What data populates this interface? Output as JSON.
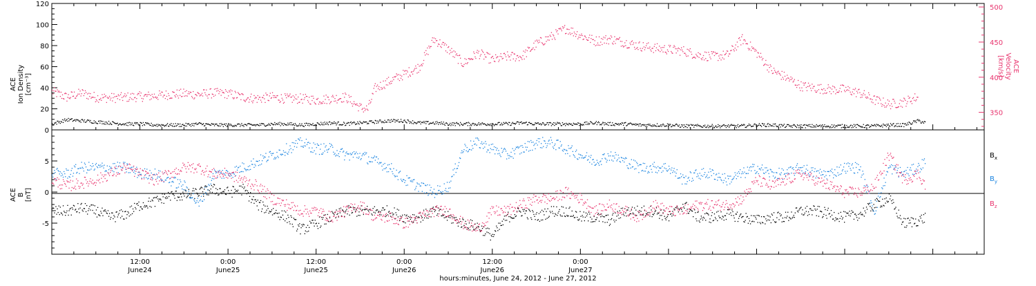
{
  "chart_data": [
    {
      "type": "scatter",
      "panel": "top",
      "ylabel_left": [
        "ACE",
        "Ion Density",
        "[cm⁻³]"
      ],
      "ylabel_right": [
        "ACE",
        "Velocity",
        "[km/s]"
      ],
      "ylim_left": [
        0,
        120
      ],
      "yticks_left": [
        0,
        20,
        40,
        60,
        80,
        100,
        120
      ],
      "ylim_right": [
        325,
        505
      ],
      "yticks_right": [
        350,
        400,
        450,
        500
      ],
      "right_axis_color": "#e8336d",
      "series": [
        {
          "axis": "left",
          "color": "#000000",
          "jitter": 1.6,
          "x": [
            0,
            2,
            4,
            6,
            8,
            10,
            12,
            14,
            16,
            18,
            20,
            22,
            24,
            26,
            28,
            30,
            32,
            34,
            36,
            38,
            40,
            42,
            44,
            46,
            48,
            50,
            52,
            54,
            56,
            58,
            60,
            62,
            64,
            66,
            68,
            70,
            72,
            74,
            76,
            78,
            80,
            82,
            84,
            86,
            88,
            90,
            92,
            94,
            96,
            98,
            100,
            102,
            104,
            106,
            108,
            110,
            112,
            114,
            116,
            118,
            119
          ],
          "y": [
            6,
            10,
            9,
            8,
            7,
            6,
            6,
            5,
            5,
            5,
            6,
            5,
            5,
            5,
            5,
            6,
            6,
            5,
            6,
            7,
            6,
            7,
            8,
            9,
            9,
            7,
            7,
            6,
            6,
            6,
            6,
            6,
            7,
            6,
            6,
            6,
            6,
            7,
            6,
            6,
            5,
            5,
            5,
            4,
            4,
            4,
            4,
            4,
            5,
            5,
            4,
            4,
            4,
            4,
            4,
            4,
            4,
            5,
            5,
            9,
            7
          ]
        },
        {
          "axis": "right",
          "color": "#e8336d",
          "jitter": 7,
          "x": [
            0,
            2,
            4,
            6,
            8,
            10,
            12,
            14,
            16,
            18,
            20,
            22,
            24,
            26,
            28,
            30,
            32,
            34,
            36,
            38,
            40,
            42,
            43,
            44,
            46,
            48,
            50,
            52,
            54,
            56,
            58,
            60,
            62,
            64,
            66,
            68,
            70,
            72,
            74,
            76,
            78,
            80,
            82,
            84,
            86,
            88,
            90,
            92,
            94,
            96,
            98,
            100,
            102,
            104,
            106,
            108,
            110,
            112,
            114,
            116,
            118
          ],
          "y": [
            380,
            372,
            378,
            372,
            371,
            372,
            373,
            374,
            376,
            377,
            376,
            378,
            377,
            372,
            370,
            372,
            370,
            370,
            368,
            370,
            372,
            357,
            355,
            385,
            395,
            405,
            415,
            455,
            440,
            420,
            435,
            425,
            430,
            430,
            448,
            458,
            470,
            460,
            452,
            455,
            450,
            445,
            442,
            440,
            438,
            432,
            430,
            432,
            455,
            435,
            410,
            400,
            388,
            385,
            383,
            383,
            378,
            368,
            362,
            365,
            373
          ]
        }
      ]
    },
    {
      "type": "scatter",
      "panel": "bottom",
      "ylabel": [
        "ACE",
        "B",
        "[nT]"
      ],
      "ylim": [
        -10,
        10
      ],
      "yticks": [
        -5,
        0,
        5
      ],
      "zero_line": true,
      "series": [
        {
          "color": "#000000",
          "jitter": 0.9,
          "x": [
            0,
            2,
            4,
            6,
            8,
            10,
            12,
            14,
            16,
            18,
            20,
            22,
            24,
            26,
            28,
            30,
            32,
            34,
            36,
            38,
            40,
            42,
            44,
            46,
            48,
            50,
            52,
            54,
            56,
            58,
            60,
            62,
            64,
            66,
            68,
            70,
            72,
            74,
            76,
            78,
            80,
            82,
            84,
            86,
            88,
            90,
            92,
            94,
            96,
            98,
            100,
            102,
            104,
            106,
            108,
            110,
            112,
            114,
            116,
            118,
            119
          ],
          "y": [
            -3,
            -3,
            -2.5,
            -3,
            -4,
            -3.5,
            -2,
            -1.5,
            -0.5,
            -0.5,
            0,
            0.5,
            0,
            0.5,
            -2,
            -3,
            -4,
            -6,
            -5,
            -4,
            -3,
            -3,
            -3,
            -3,
            -4,
            -4,
            -3,
            -4,
            -5,
            -5.5,
            -7,
            -4,
            -3,
            -4,
            -3,
            -3,
            -4,
            -4,
            -4.5,
            -3,
            -3,
            -3,
            -4,
            -2,
            -4,
            -4,
            -3.5,
            -4,
            -4.5,
            -4,
            -4,
            -3,
            -3,
            -3.5,
            -4,
            -3.5,
            -2,
            -1,
            -5,
            -4.5,
            -4
          ]
        },
        {
          "color": "#1a84e0",
          "jitter": 0.9,
          "x": [
            0,
            2,
            4,
            6,
            8,
            10,
            12,
            14,
            16,
            18,
            20,
            22,
            24,
            26,
            28,
            30,
            32,
            34,
            36,
            38,
            40,
            42,
            44,
            46,
            48,
            50,
            52,
            54,
            56,
            58,
            60,
            62,
            64,
            66,
            68,
            70,
            72,
            74,
            76,
            78,
            80,
            82,
            84,
            86,
            88,
            90,
            92,
            94,
            96,
            98,
            100,
            102,
            104,
            106,
            108,
            110,
            112,
            114,
            116,
            118,
            119
          ],
          "y": [
            3,
            3,
            4,
            4,
            4,
            4,
            3,
            3,
            2,
            1,
            -2,
            3,
            3,
            4,
            5,
            6,
            7,
            8,
            7,
            7,
            6,
            6,
            5,
            4,
            2,
            1,
            0,
            1,
            7,
            8,
            7,
            6,
            7,
            8,
            8,
            7,
            6,
            5,
            6,
            5,
            4,
            4,
            4,
            2,
            3,
            3,
            2,
            3,
            4,
            3,
            3,
            4,
            3,
            3,
            4,
            4,
            -3,
            4,
            3,
            4,
            5
          ]
        },
        {
          "color": "#e8336d",
          "jitter": 0.9,
          "x": [
            0,
            2,
            4,
            6,
            8,
            10,
            12,
            14,
            16,
            18,
            20,
            22,
            24,
            26,
            28,
            30,
            32,
            34,
            36,
            38,
            40,
            42,
            44,
            46,
            48,
            50,
            52,
            54,
            56,
            58,
            60,
            62,
            64,
            66,
            68,
            70,
            72,
            74,
            76,
            78,
            80,
            82,
            84,
            86,
            88,
            90,
            92,
            94,
            96,
            98,
            100,
            102,
            104,
            106,
            108,
            110,
            112,
            114,
            116,
            118,
            119
          ],
          "y": [
            2,
            1,
            1.5,
            2,
            3,
            4,
            3,
            2,
            3,
            4,
            4,
            3,
            3,
            2,
            1,
            -1,
            -2,
            -3,
            -3,
            -4,
            -3,
            -2,
            -4,
            -4,
            -5,
            -4,
            -3,
            -3,
            -5,
            -6,
            -3,
            -3,
            -2,
            -1,
            -1,
            0,
            -1,
            -3,
            -2,
            -3,
            -4,
            -2,
            -3,
            -3,
            -2,
            -2,
            -2,
            -1,
            2,
            1,
            2,
            3,
            2,
            1,
            0,
            0,
            1,
            6,
            2,
            3,
            1
          ]
        }
      ]
    }
  ],
  "legend": {
    "bx": {
      "base": "B",
      "sub": "x",
      "color": "#000000"
    },
    "by": {
      "base": "B",
      "sub": "y",
      "color": "#1a84e0"
    },
    "bz": {
      "base": "B",
      "sub": "z",
      "color": "#e8336d"
    }
  },
  "x_axis": {
    "range_hours": [
      0,
      127
    ],
    "ticks": [
      {
        "hour": 12,
        "line1": "12:00",
        "line2": "June24"
      },
      {
        "hour": 24,
        "line1": "0:00",
        "line2": "June25"
      },
      {
        "hour": 36,
        "line1": "12:00",
        "line2": "June25"
      },
      {
        "hour": 48,
        "line1": "0:00",
        "line2": "June26"
      },
      {
        "hour": 60,
        "line1": "12:00",
        "line2": "June26"
      },
      {
        "hour": 72,
        "line1": "0:00",
        "line2": "June27"
      }
    ],
    "label": "hours:minutes, June 24, 2012 - June 27, 2012"
  }
}
